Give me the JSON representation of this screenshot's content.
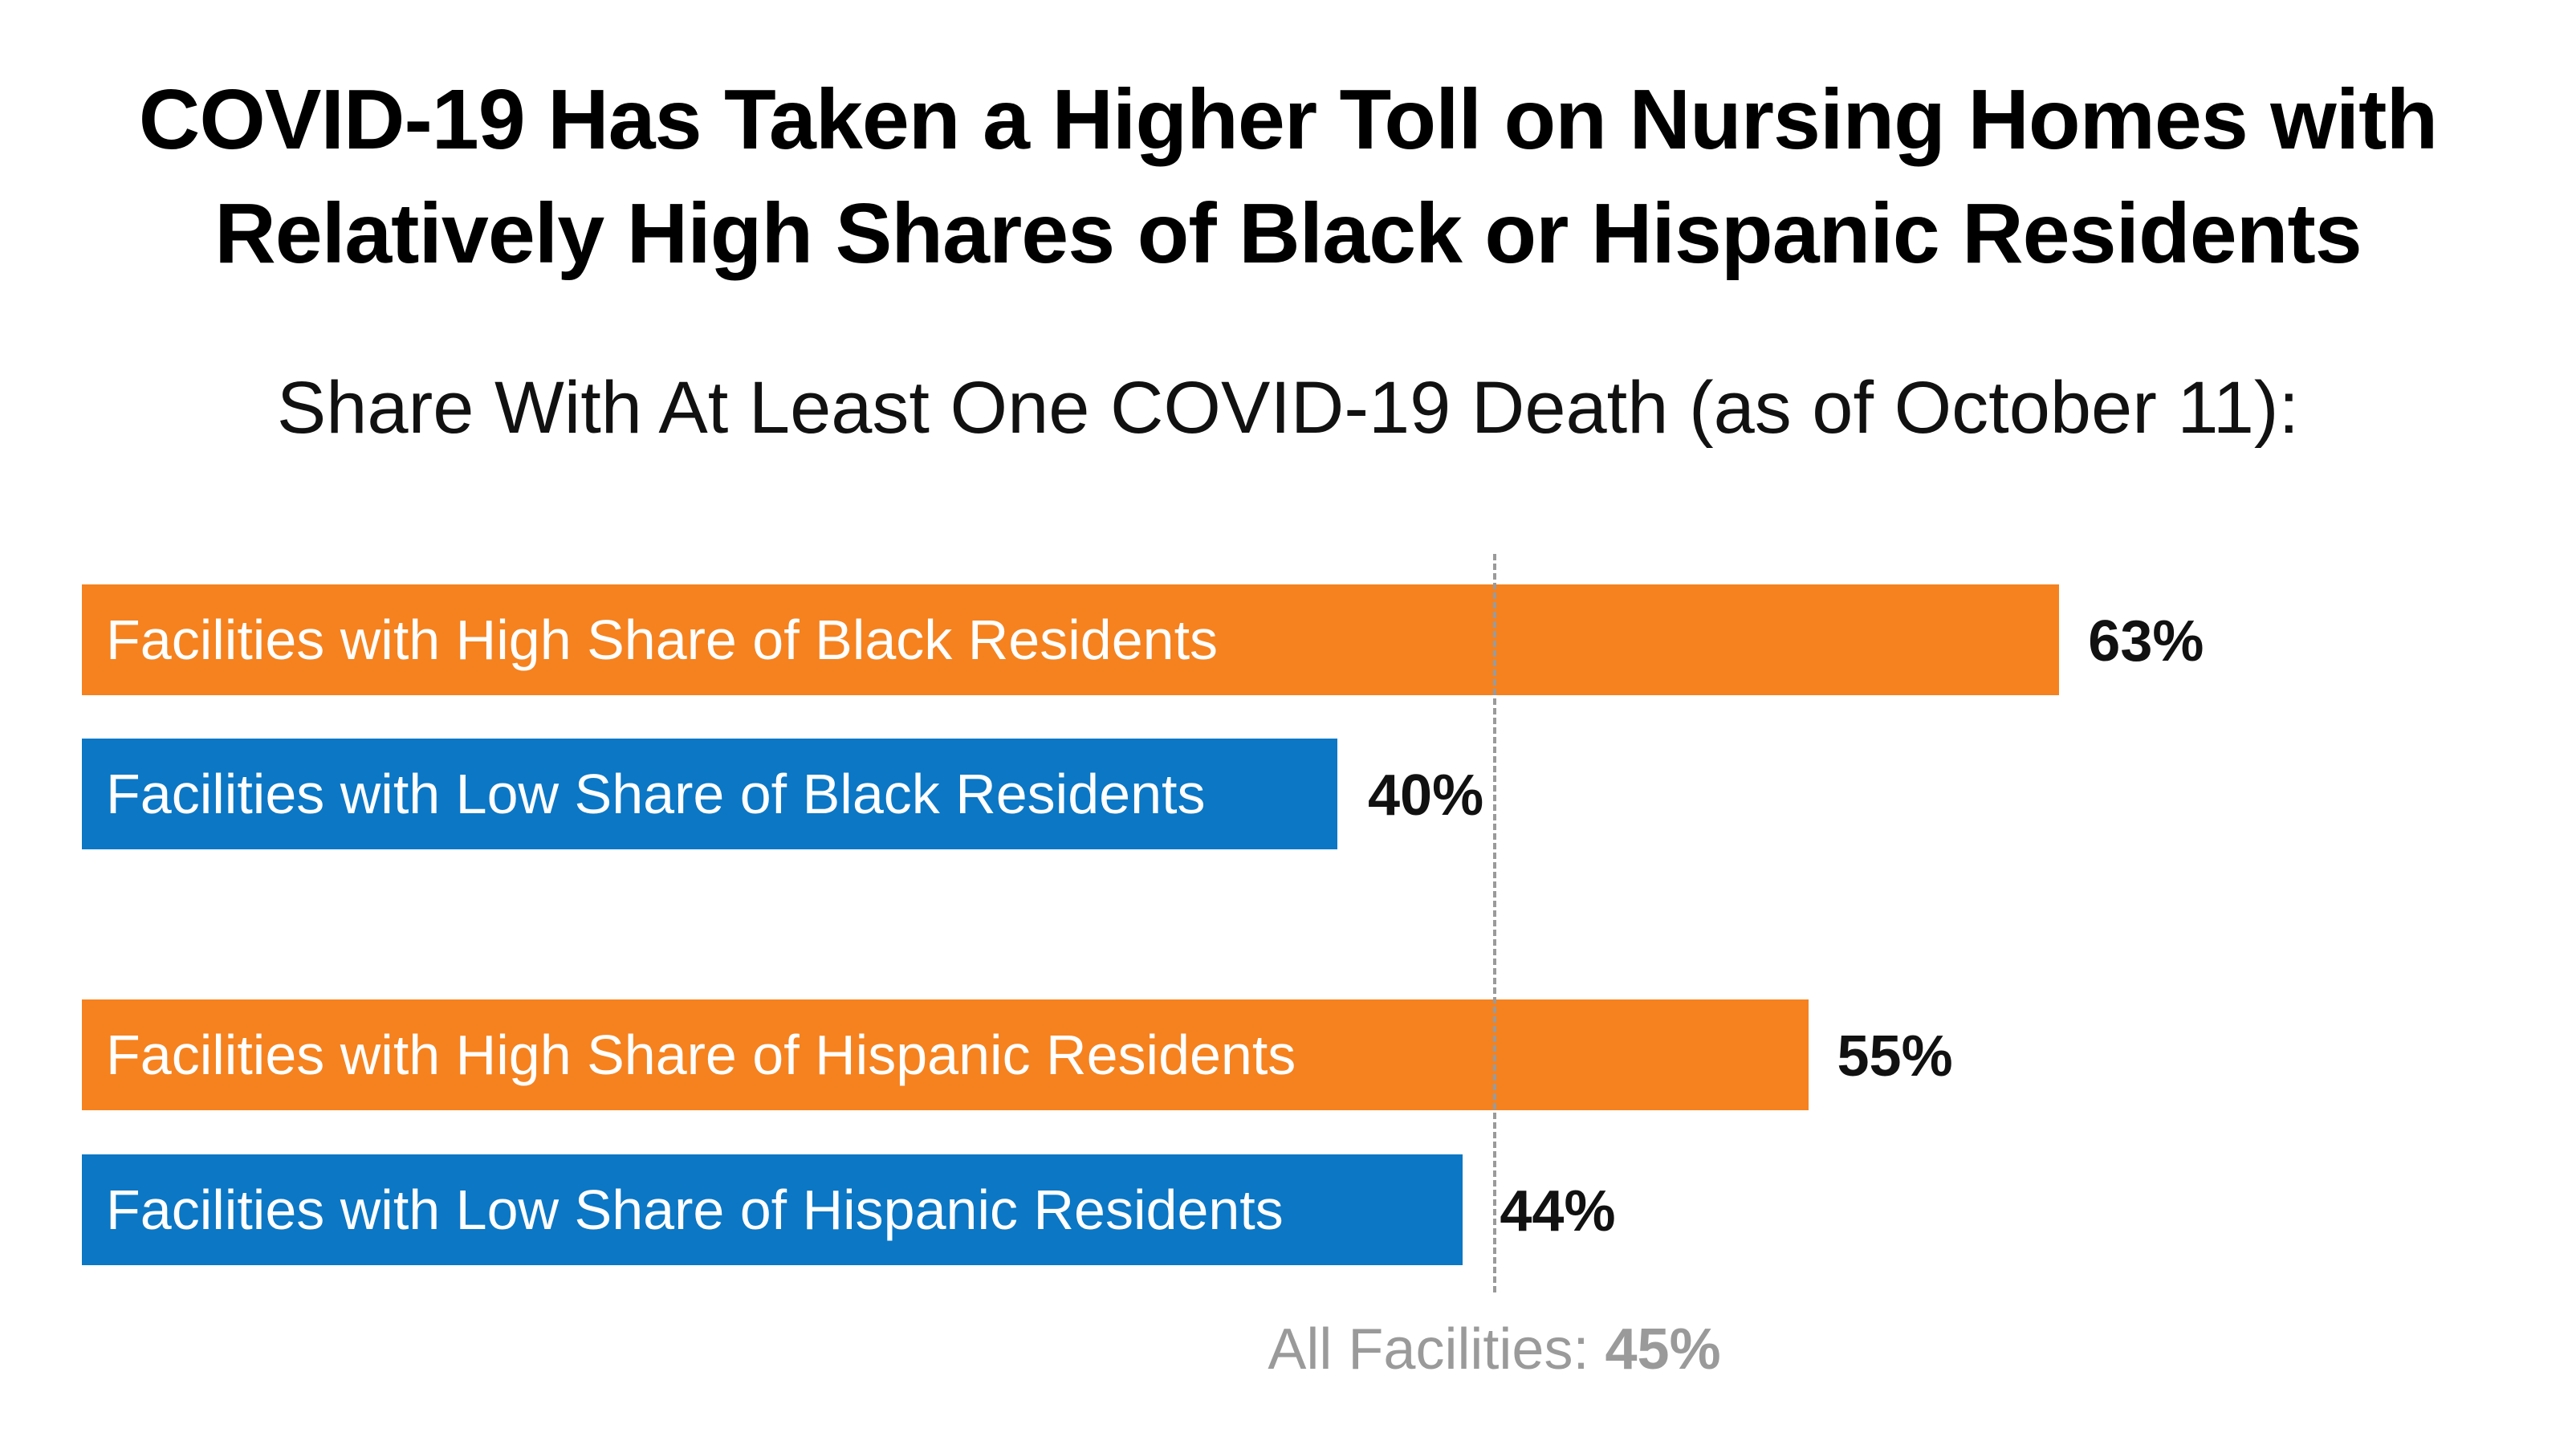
{
  "chart_data": {
    "type": "bar",
    "orientation": "horizontal",
    "title": "COVID-19 Has Taken a Higher Toll on Nursing Homes with Relatively High Shares of Black or Hispanic Residents",
    "subtitle": "Share With At Least One COVID-19 Death (as of October 11):",
    "categories": [
      "Facilities with High Share of Black Residents",
      "Facilities with Low Share of Black Residents",
      "Facilities with High Share of Hispanic Residents",
      "Facilities with Low Share of Hispanic Residents"
    ],
    "values": [
      63,
      40,
      55,
      44
    ],
    "value_labels": [
      "63%",
      "40%",
      "55%",
      "44%"
    ],
    "bar_colors": [
      "#F5821F",
      "#0B77C5",
      "#F5821F",
      "#0B77C5"
    ],
    "groups": [
      [
        0,
        1
      ],
      [
        2,
        3
      ]
    ],
    "reference_line": {
      "label": "All Facilities:",
      "value": 45,
      "value_label": "45%",
      "color": "#9A9A9A"
    },
    "xlim": [
      0,
      100
    ],
    "grid": false,
    "legend": "none"
  }
}
